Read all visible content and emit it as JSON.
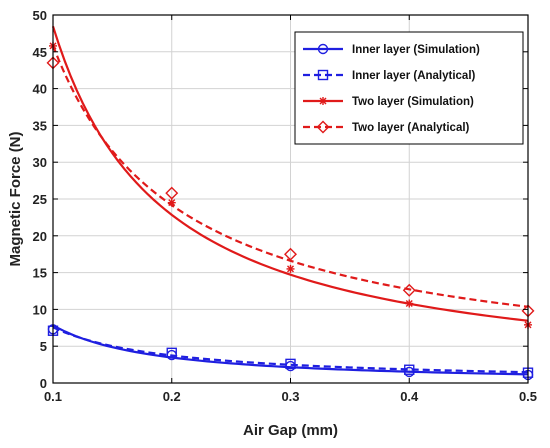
{
  "chart_data": {
    "type": "line",
    "xlabel": "Air Gap (mm)",
    "ylabel": "Magnetic Force (N)",
    "xlim": [
      0.1,
      0.5
    ],
    "ylim": [
      0,
      50
    ],
    "xticks": [
      0.1,
      0.2,
      0.3,
      0.4,
      0.5
    ],
    "yticks": [
      0,
      5,
      10,
      15,
      20,
      25,
      30,
      35,
      40,
      45,
      50
    ],
    "xtick_labels": [
      "0.1",
      "0.2",
      "0.3",
      "0.4",
      "0.5"
    ],
    "ytick_labels": [
      "0",
      "5",
      "10",
      "15",
      "20",
      "25",
      "30",
      "35",
      "40",
      "45",
      "50"
    ],
    "grid": true,
    "legend_position": "top-right",
    "series": [
      {
        "name": "Inner layer (Simulation)",
        "color": "#1f1fe0",
        "dash": "solid",
        "marker": "circle",
        "x": [
          0.1,
          0.2,
          0.3,
          0.4,
          0.5
        ],
        "y": [
          7.3,
          3.8,
          2.3,
          1.5,
          1.1
        ]
      },
      {
        "name": "Inner layer (Analytical)",
        "color": "#1f1fe0",
        "dash": "dashed",
        "marker": "square",
        "x": [
          0.1,
          0.2,
          0.3,
          0.4,
          0.5
        ],
        "y": [
          7.1,
          4.1,
          2.6,
          1.8,
          1.4
        ]
      },
      {
        "name": "Two layer (Simulation)",
        "color": "#e01a1a",
        "dash": "solid",
        "marker": "star",
        "x": [
          0.1,
          0.2,
          0.3,
          0.4,
          0.5
        ],
        "y": [
          45.8,
          24.5,
          15.5,
          10.8,
          7.9
        ]
      },
      {
        "name": "Two layer (Analytical)",
        "color": "#e01a1a",
        "dash": "dashed",
        "marker": "diamond",
        "x": [
          0.1,
          0.2,
          0.3,
          0.4,
          0.5
        ],
        "y": [
          43.5,
          25.8,
          17.5,
          12.6,
          9.8
        ]
      }
    ]
  }
}
